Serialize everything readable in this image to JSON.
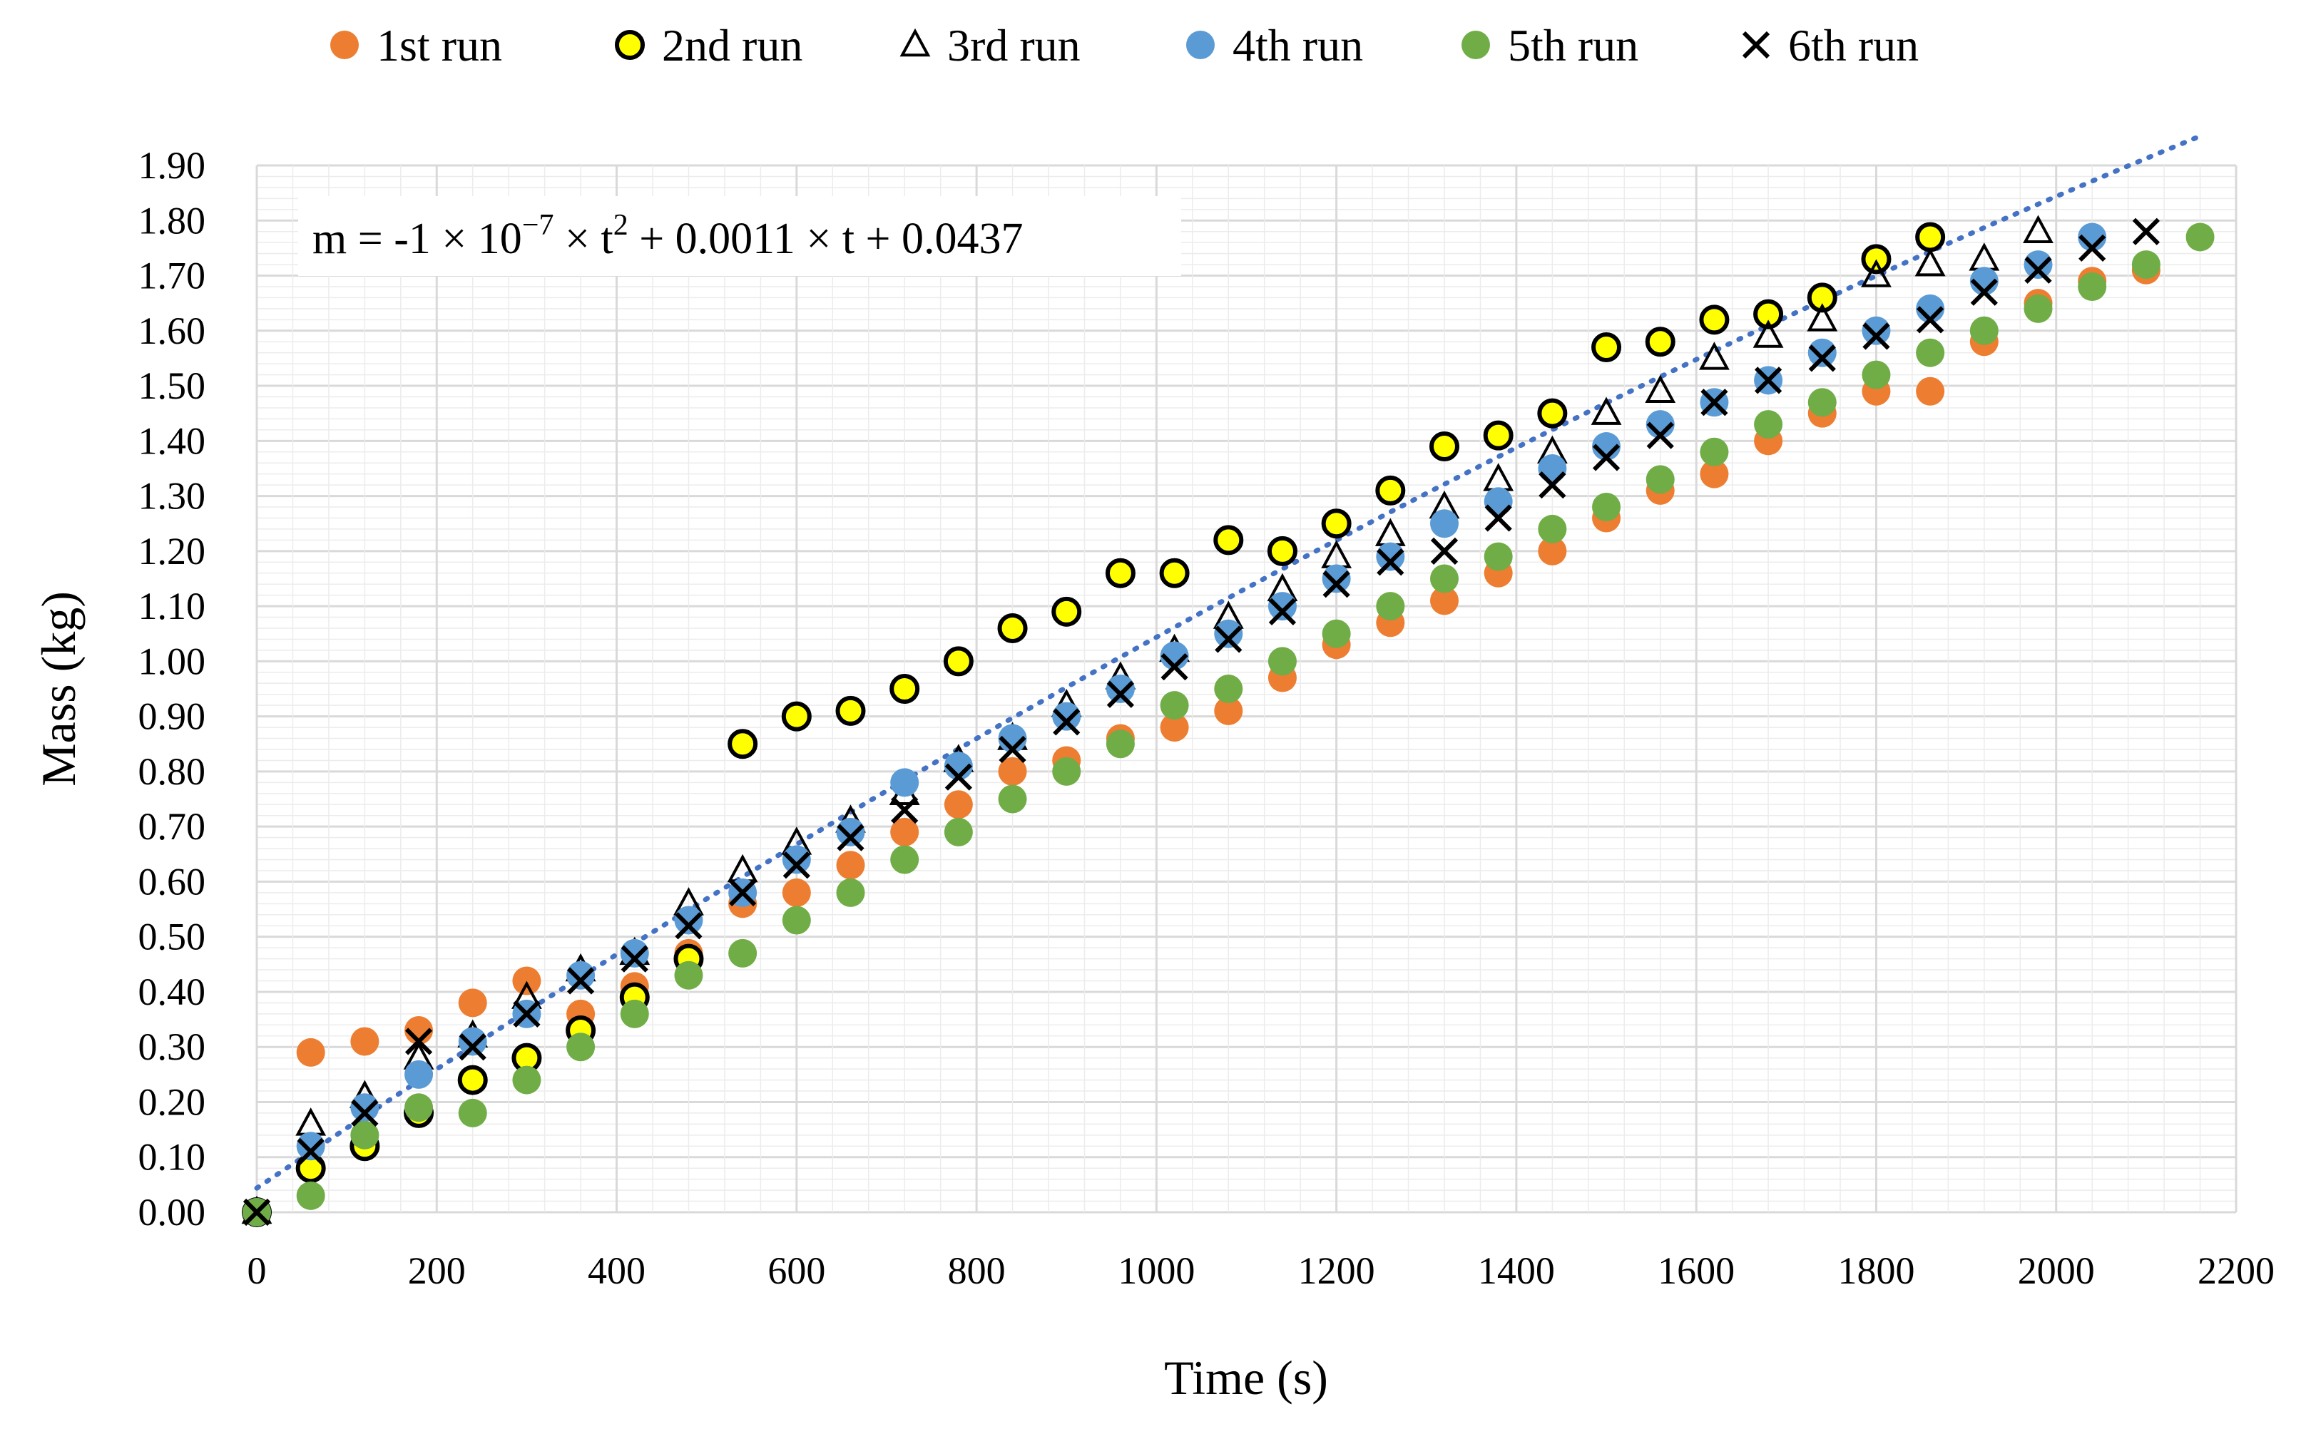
{
  "chart_data": {
    "type": "scatter",
    "title": "",
    "xlabel": "Time (s)",
    "ylabel": "Mass (kg)",
    "xlim": [
      0,
      2200
    ],
    "ylim": [
      0,
      1.9
    ],
    "x_ticks": [
      "0",
      "200",
      "400",
      "600",
      "800",
      "1000",
      "1200",
      "1400",
      "1600",
      "1800",
      "2000",
      "2200"
    ],
    "y_ticks": [
      "0.00",
      "0.10",
      "0.20",
      "0.30",
      "0.40",
      "0.50",
      "0.60",
      "0.70",
      "0.80",
      "0.90",
      "1.00",
      "1.10",
      "1.20",
      "1.30",
      "1.40",
      "1.50",
      "1.60",
      "1.70",
      "1.80",
      "1.90"
    ],
    "grid": "on",
    "legend_position": "top",
    "trendline": {
      "style": "dotted",
      "color": "#4472C4",
      "coefficients": {
        "a": -1e-07,
        "b": 0.0011,
        "c": 0.0437
      },
      "x_range": [
        0,
        2160
      ]
    },
    "equation": {
      "prefix": "m = -1 × 10",
      "exponent": "−7",
      "middle": " × t",
      "t_exponent": "2",
      "suffix": " + 0.0011 × t + 0.0437"
    },
    "series": [
      {
        "name": "1st run",
        "marker": "circle",
        "color": "#ED7D31",
        "x": [
          0,
          60,
          120,
          180,
          240,
          300,
          360,
          420,
          480,
          540,
          600,
          660,
          720,
          780,
          840,
          900,
          960,
          1020,
          1080,
          1140,
          1200,
          1260,
          1320,
          1380,
          1440,
          1500,
          1560,
          1620,
          1680,
          1740,
          1800,
          1860,
          1920,
          1980,
          2040,
          2100
        ],
        "y": [
          0.0,
          0.29,
          0.31,
          0.33,
          0.38,
          0.42,
          0.36,
          0.41,
          0.47,
          0.56,
          0.58,
          0.63,
          0.69,
          0.74,
          0.8,
          0.82,
          0.86,
          0.88,
          0.91,
          0.97,
          1.03,
          1.07,
          1.11,
          1.16,
          1.2,
          1.26,
          1.31,
          1.34,
          1.4,
          1.45,
          1.49,
          1.49,
          1.58,
          1.65,
          1.69,
          1.71
        ]
      },
      {
        "name": "2nd run",
        "marker": "circle-outline",
        "color": "#FFFF00",
        "x": [
          0,
          60,
          120,
          180,
          240,
          300,
          360,
          420,
          480,
          540,
          600,
          660,
          720,
          780,
          840,
          900,
          960,
          1020,
          1080,
          1140,
          1200,
          1260,
          1320,
          1380,
          1440,
          1500,
          1560,
          1620,
          1680,
          1740,
          1800,
          1860
        ],
        "y": [
          0.0,
          0.08,
          0.12,
          0.18,
          0.24,
          0.28,
          0.33,
          0.39,
          0.46,
          0.85,
          0.9,
          0.91,
          0.95,
          1.0,
          1.06,
          1.09,
          1.16,
          1.16,
          1.22,
          1.2,
          1.25,
          1.31,
          1.39,
          1.41,
          1.45,
          1.57,
          1.58,
          1.62,
          1.63,
          1.66,
          1.73,
          1.77
        ]
      },
      {
        "name": "3rd run",
        "marker": "triangle",
        "color": "#000000",
        "x": [
          0,
          60,
          120,
          180,
          240,
          300,
          360,
          420,
          480,
          540,
          600,
          660,
          720,
          780,
          840,
          900,
          960,
          1020,
          1080,
          1140,
          1200,
          1260,
          1320,
          1380,
          1440,
          1500,
          1560,
          1620,
          1680,
          1740,
          1800,
          1860,
          1920,
          1980
        ],
        "y": [
          0.0,
          0.16,
          0.21,
          0.28,
          0.32,
          0.39,
          0.44,
          0.47,
          0.56,
          0.62,
          0.67,
          0.71,
          0.76,
          0.82,
          0.86,
          0.92,
          0.97,
          1.02,
          1.08,
          1.13,
          1.19,
          1.23,
          1.28,
          1.33,
          1.38,
          1.45,
          1.49,
          1.55,
          1.59,
          1.62,
          1.7,
          1.72,
          1.73,
          1.78
        ]
      },
      {
        "name": "4th run",
        "marker": "circle",
        "color": "#5B9BD5",
        "x": [
          0,
          60,
          120,
          180,
          240,
          300,
          360,
          420,
          480,
          540,
          600,
          660,
          720,
          780,
          840,
          900,
          960,
          1020,
          1080,
          1140,
          1200,
          1260,
          1320,
          1380,
          1440,
          1500,
          1560,
          1620,
          1680,
          1740,
          1800,
          1860,
          1920,
          1980,
          2040
        ],
        "y": [
          0.0,
          0.12,
          0.19,
          0.25,
          0.31,
          0.36,
          0.43,
          0.47,
          0.53,
          0.58,
          0.64,
          0.69,
          0.78,
          0.81,
          0.86,
          0.9,
          0.95,
          1.01,
          1.05,
          1.1,
          1.15,
          1.19,
          1.25,
          1.29,
          1.35,
          1.39,
          1.43,
          1.47,
          1.51,
          1.56,
          1.6,
          1.64,
          1.69,
          1.72,
          1.77
        ]
      },
      {
        "name": "5th run",
        "marker": "circle",
        "color": "#70AD47",
        "x": [
          0,
          60,
          120,
          180,
          240,
          300,
          360,
          420,
          480,
          540,
          600,
          660,
          720,
          780,
          840,
          900,
          960,
          1020,
          1080,
          1140,
          1200,
          1260,
          1320,
          1380,
          1440,
          1500,
          1560,
          1620,
          1680,
          1740,
          1800,
          1860,
          1920,
          1980,
          2040,
          2100,
          2160
        ],
        "y": [
          0.0,
          0.03,
          0.14,
          0.19,
          0.18,
          0.24,
          0.3,
          0.36,
          0.43,
          0.47,
          0.53,
          0.58,
          0.64,
          0.69,
          0.75,
          0.8,
          0.85,
          0.92,
          0.95,
          1.0,
          1.05,
          1.1,
          1.15,
          1.19,
          1.24,
          1.28,
          1.33,
          1.38,
          1.43,
          1.47,
          1.52,
          1.56,
          1.6,
          1.64,
          1.68,
          1.72,
          1.77
        ]
      },
      {
        "name": "6th run",
        "marker": "x",
        "color": "#000000",
        "x": [
          0,
          60,
          120,
          180,
          240,
          300,
          360,
          420,
          480,
          540,
          600,
          660,
          720,
          780,
          840,
          900,
          960,
          1020,
          1080,
          1140,
          1200,
          1260,
          1320,
          1380,
          1440,
          1500,
          1560,
          1620,
          1680,
          1740,
          1800,
          1860,
          1920,
          1980,
          2040,
          2100
        ],
        "y": [
          0.0,
          0.11,
          0.18,
          0.31,
          0.3,
          0.36,
          0.42,
          0.46,
          0.52,
          0.58,
          0.63,
          0.68,
          0.73,
          0.79,
          0.84,
          0.89,
          0.94,
          0.99,
          1.04,
          1.09,
          1.14,
          1.18,
          1.2,
          1.26,
          1.32,
          1.37,
          1.41,
          1.47,
          1.51,
          1.55,
          1.59,
          1.62,
          1.67,
          1.71,
          1.75,
          1.78
        ]
      }
    ]
  }
}
